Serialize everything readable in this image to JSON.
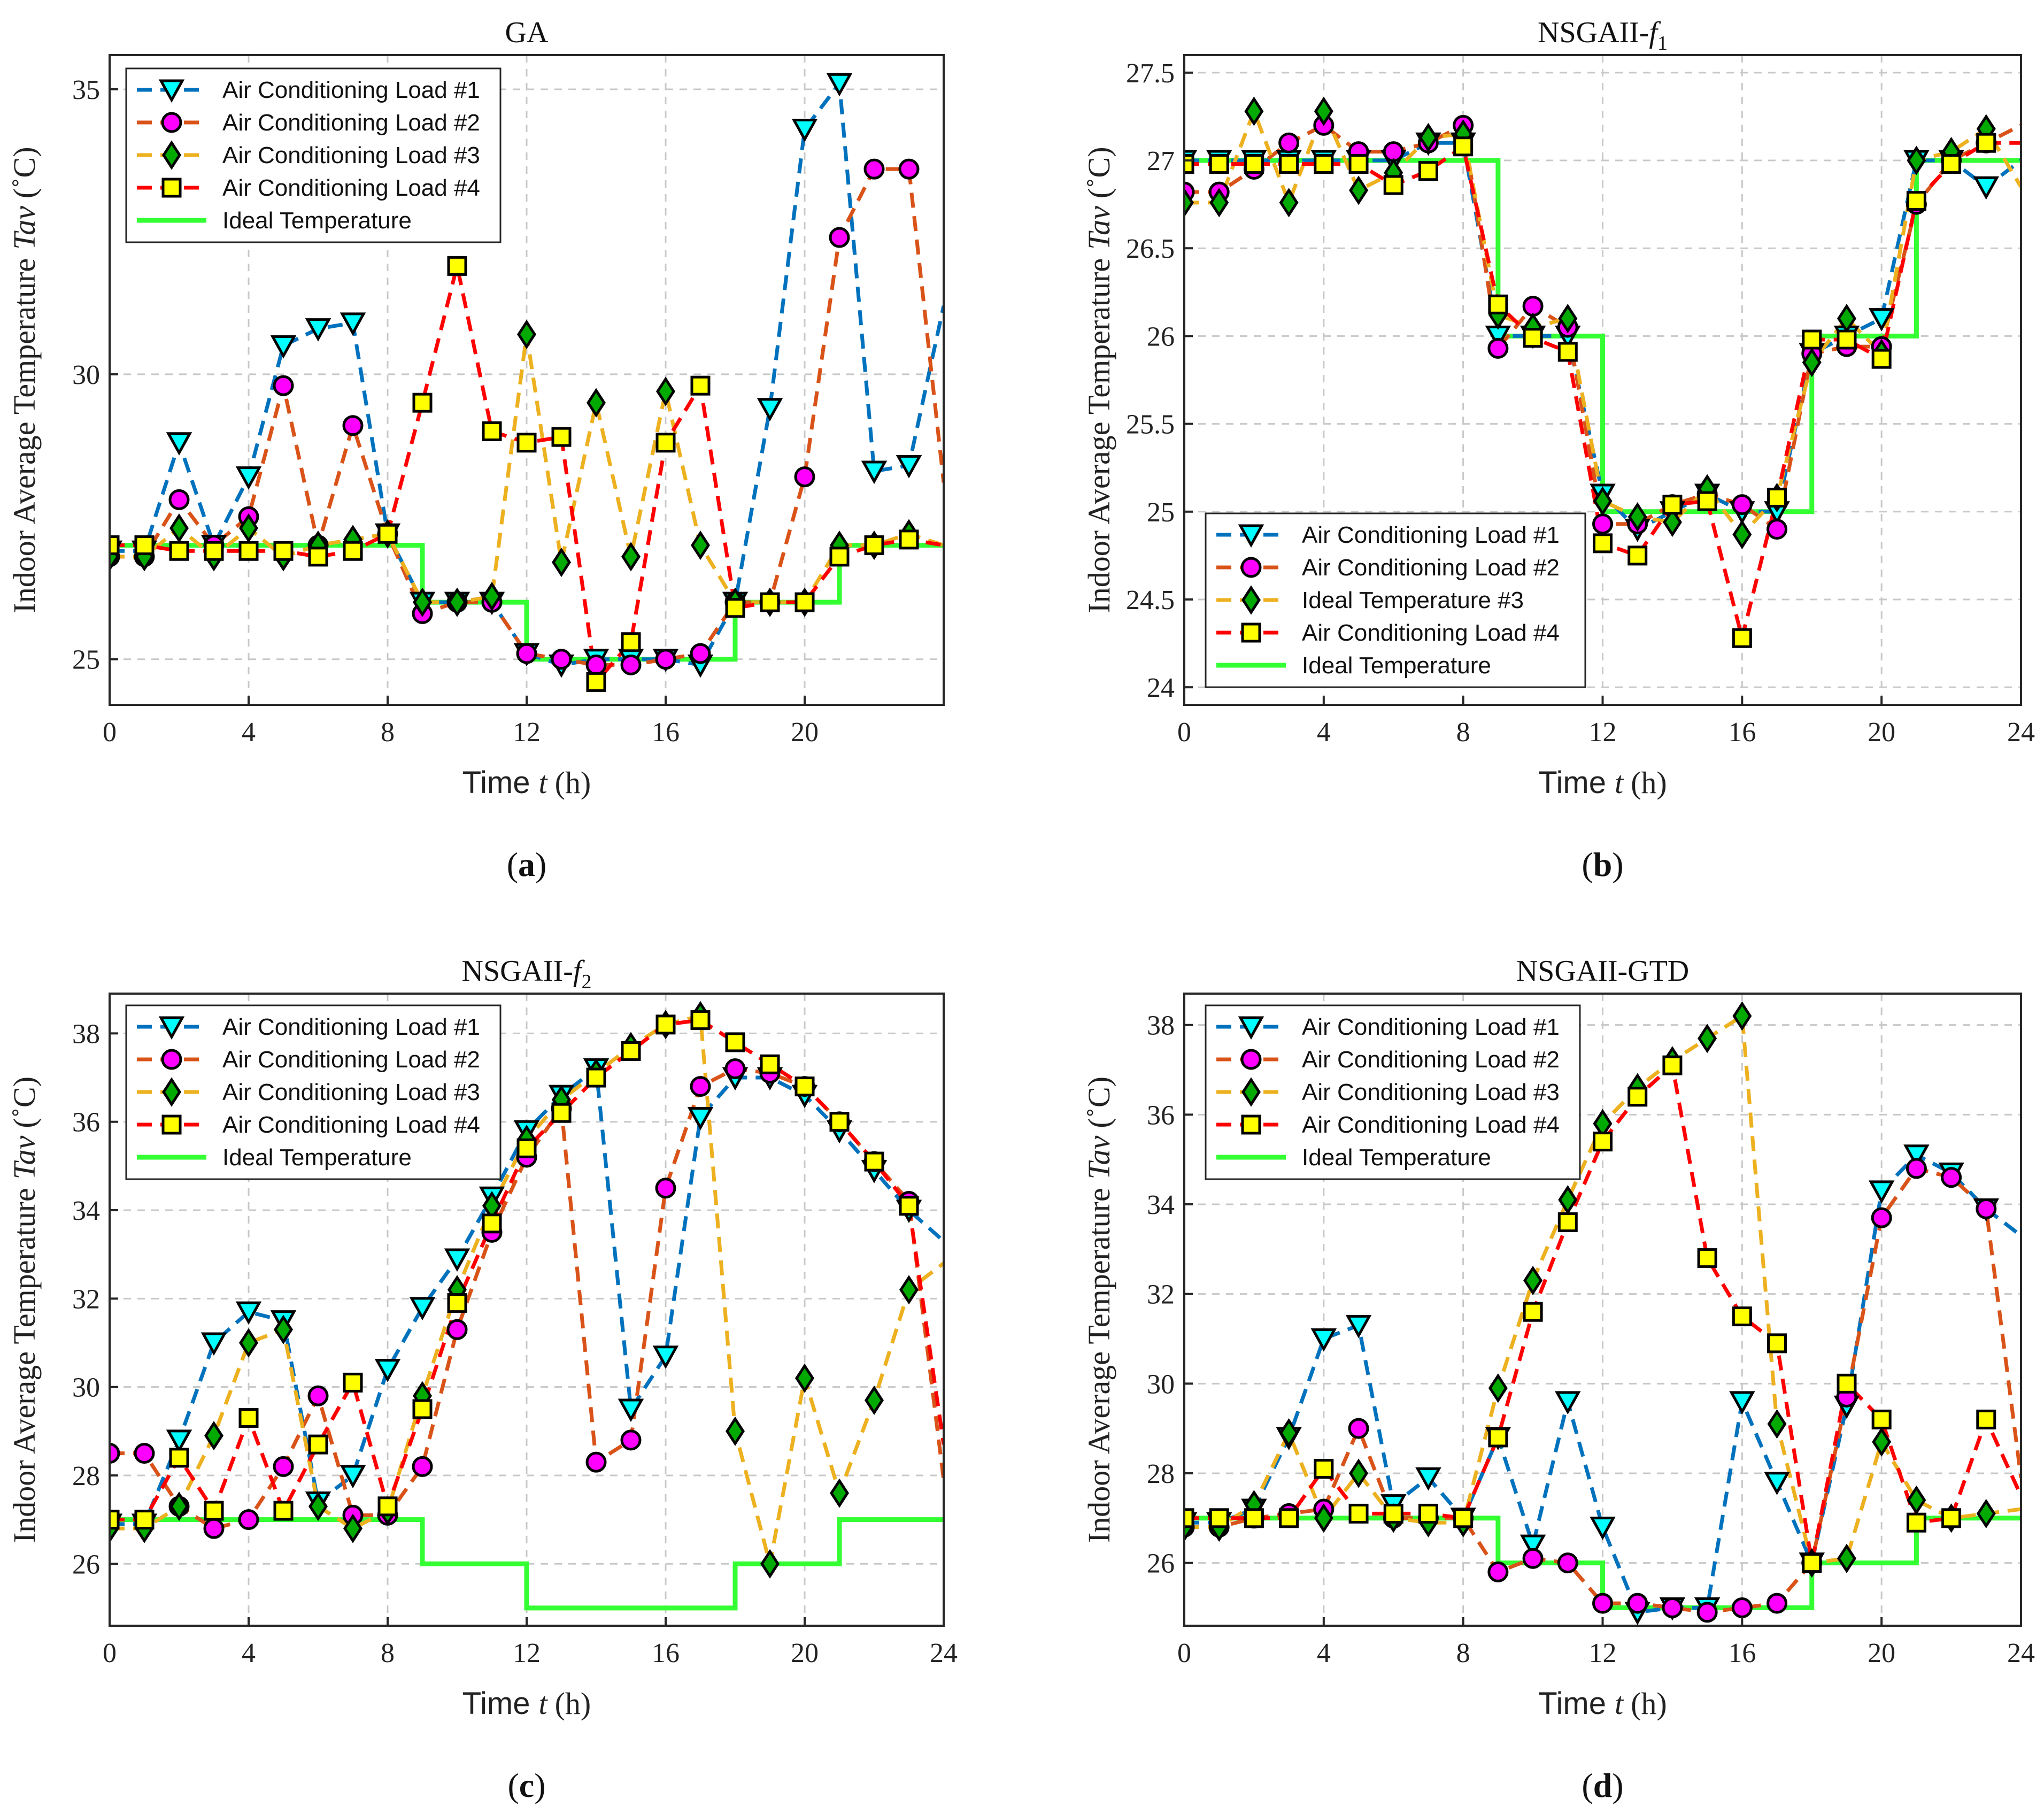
{
  "colors": {
    "load1": "#0072BD",
    "load2": "#D95319",
    "load3": "#EDB120",
    "load4": "#FF0000",
    "ideal": "#33FF33",
    "marker1": "#00FFFF",
    "marker2": "#FF00FF",
    "marker3": "#00AA00",
    "marker4": "#FFFF00",
    "grid": "#c8c8c8"
  },
  "chart_data": [
    {
      "type": "line",
      "caption_letter": "a",
      "title_main": "GA",
      "title_sub": "",
      "xlabel": "Time",
      "xlabel_var": "t",
      "xlabel_unit": "(h)",
      "ylabel": "Indoor Average Temperature",
      "ylabel_var": "Tav",
      "ylabel_unit": "(˚C)",
      "xlim": [
        0,
        24
      ],
      "ylim": [
        24.2,
        35.6
      ],
      "xticks": [
        0,
        4,
        8,
        12,
        16,
        20
      ],
      "yticks": [
        25,
        30,
        35
      ],
      "grid": true,
      "legend_position": "top-left",
      "x": [
        0,
        1,
        2,
        3,
        4,
        5,
        6,
        7,
        8,
        9,
        10,
        11,
        12,
        13,
        14,
        15,
        16,
        17,
        18,
        19,
        20,
        21,
        22,
        23,
        24
      ],
      "series": [
        {
          "name": "Air Conditioning Load #1",
          "marker": "triangle-down",
          "values": [
            26.9,
            26.9,
            28.8,
            27.0,
            28.2,
            30.5,
            30.8,
            30.9,
            27.2,
            26.0,
            26.0,
            26.0,
            25.1,
            24.9,
            25.0,
            25.0,
            25.0,
            24.9,
            26.0,
            29.4,
            34.3,
            35.1,
            28.3,
            28.4,
            31.2
          ]
        },
        {
          "name": "Air Conditioning Load #2",
          "marker": "circle",
          "values": [
            26.8,
            26.8,
            27.8,
            27.0,
            27.5,
            29.8,
            27.0,
            29.1,
            27.2,
            25.8,
            26.0,
            26.0,
            25.1,
            25.0,
            24.9,
            24.9,
            25.0,
            25.1,
            26.0,
            26.0,
            28.2,
            32.4,
            33.6,
            33.6,
            28.1
          ]
        },
        {
          "name": "Air Conditioning Load #3",
          "marker": "diamond",
          "values": [
            26.8,
            26.8,
            27.3,
            26.8,
            27.3,
            26.8,
            27.0,
            27.1,
            27.2,
            26.0,
            26.0,
            26.1,
            30.7,
            26.7,
            29.5,
            26.8,
            29.7,
            27.0,
            26.0,
            26.0,
            26.0,
            27.0,
            27.0,
            27.2,
            27.0
          ]
        },
        {
          "name": "Air Conditioning Load #4",
          "marker": "square",
          "values": [
            27.0,
            27.0,
            26.9,
            26.9,
            26.9,
            26.9,
            26.8,
            26.9,
            27.2,
            29.5,
            31.9,
            29.0,
            28.8,
            28.9,
            24.6,
            25.3,
            28.8,
            29.8,
            25.9,
            26.0,
            26.0,
            26.8,
            27.0,
            27.1,
            27.0
          ]
        },
        {
          "name": "Ideal Temperature",
          "marker": "none",
          "step": true,
          "values": [
            27,
            27,
            27,
            27,
            27,
            27,
            27,
            27,
            27,
            26,
            26,
            26,
            25,
            25,
            25,
            25,
            25,
            25,
            26,
            26,
            26,
            27,
            27,
            27,
            27
          ]
        }
      ]
    },
    {
      "type": "line",
      "caption_letter": "b",
      "title_main": "NSGAII-",
      "title_sub": "f1",
      "xlabel": "Time",
      "xlabel_var": "t",
      "xlabel_unit": "(h)",
      "ylabel": "Indoor Average Temperature",
      "ylabel_var": "Tav",
      "ylabel_unit": "(˚C)",
      "xlim": [
        0,
        24
      ],
      "ylim": [
        23.9,
        27.6
      ],
      "xticks": [
        0,
        4,
        8,
        12,
        16,
        20,
        24
      ],
      "yticks": [
        24,
        24.5,
        25,
        25.5,
        26,
        26.5,
        27,
        27.5
      ],
      "grid": true,
      "legend_position": "bottom-left",
      "x": [
        0,
        1,
        2,
        3,
        4,
        5,
        6,
        7,
        8,
        9,
        10,
        11,
        12,
        13,
        14,
        15,
        16,
        17,
        18,
        19,
        20,
        21,
        22,
        23,
        24
      ],
      "series": [
        {
          "name": "Air Conditioning Load #1",
          "marker": "triangle-down",
          "values": [
            27.0,
            27.0,
            27.0,
            27.0,
            27.0,
            27.0,
            27.0,
            27.1,
            27.1,
            26.0,
            26.0,
            26.0,
            25.1,
            24.9,
            25.0,
            25.1,
            25.0,
            25.0,
            25.9,
            26.0,
            26.1,
            27.0,
            27.0,
            26.85,
            27.0
          ]
        },
        {
          "name": "Air Conditioning Load #2",
          "marker": "circle",
          "values": [
            26.82,
            26.82,
            26.95,
            27.1,
            27.2,
            27.05,
            27.05,
            27.1,
            27.2,
            25.93,
            26.17,
            26.05,
            24.93,
            24.93,
            25.04,
            25.1,
            25.04,
            24.9,
            25.9,
            25.94,
            25.94,
            26.75,
            27.0,
            27.1,
            27.2
          ]
        },
        {
          "name": "Ideal Temperature #3",
          "marker": "diamond",
          "values": [
            26.76,
            26.76,
            27.28,
            26.76,
            27.28,
            26.83,
            26.93,
            27.13,
            27.15,
            26.12,
            26.05,
            26.1,
            25.06,
            24.97,
            24.94,
            25.13,
            24.87,
            25.08,
            25.85,
            26.1,
            25.9,
            27.0,
            27.05,
            27.18,
            26.85
          ]
        },
        {
          "name": "Air Conditioning Load #4",
          "marker": "square",
          "values": [
            26.98,
            26.98,
            26.98,
            26.98,
            26.98,
            26.98,
            26.86,
            26.94,
            27.08,
            26.18,
            25.99,
            25.91,
            24.82,
            24.75,
            25.04,
            25.06,
            24.28,
            25.08,
            25.98,
            25.98,
            25.87,
            26.77,
            26.98,
            27.1,
            27.1
          ]
        },
        {
          "name": "Ideal Temperature",
          "marker": "none",
          "step": true,
          "values": [
            27,
            27,
            27,
            27,
            27,
            27,
            27,
            27,
            27,
            26,
            26,
            26,
            25,
            25,
            25,
            25,
            25,
            25,
            26,
            26,
            26,
            27,
            27,
            27,
            27
          ]
        }
      ]
    },
    {
      "type": "line",
      "caption_letter": "c",
      "title_main": "NSGAII-",
      "title_sub": "f2",
      "xlabel": "Time",
      "xlabel_var": "t",
      "xlabel_unit": "(h)",
      "ylabel": "Indoor Average Temperature",
      "ylabel_var": "Tav",
      "ylabel_unit": "(˚C)",
      "xlim": [
        0,
        24
      ],
      "ylim": [
        24.6,
        38.9
      ],
      "xticks": [
        0,
        4,
        8,
        12,
        16,
        20,
        24
      ],
      "yticks": [
        26,
        28,
        30,
        32,
        34,
        36,
        38
      ],
      "grid": true,
      "legend_position": "top-left",
      "x": [
        0,
        1,
        2,
        3,
        4,
        5,
        6,
        7,
        8,
        9,
        10,
        11,
        12,
        13,
        14,
        15,
        16,
        17,
        18,
        19,
        20,
        21,
        22,
        23,
        24
      ],
      "series": [
        {
          "name": "Air Conditioning Load #1",
          "marker": "triangle-down",
          "values": [
            26.9,
            26.9,
            28.8,
            31.0,
            31.7,
            31.5,
            27.4,
            28.0,
            30.4,
            31.8,
            32.9,
            34.3,
            35.8,
            36.6,
            37.2,
            29.5,
            30.7,
            36.1,
            37.0,
            37.0,
            36.6,
            35.8,
            34.9,
            34.0,
            33.3
          ]
        },
        {
          "name": "Air Conditioning Load #2",
          "marker": "circle",
          "values": [
            28.5,
            28.5,
            27.3,
            26.8,
            27.0,
            28.2,
            29.8,
            27.1,
            27.1,
            28.2,
            31.3,
            33.5,
            35.2,
            36.3,
            28.3,
            28.8,
            34.5,
            36.8,
            37.2,
            37.1,
            36.8,
            36.0,
            35.1,
            34.2,
            27.9
          ]
        },
        {
          "name": "Air Conditioning Load #3",
          "marker": "diamond",
          "values": [
            26.8,
            26.8,
            27.3,
            28.9,
            31.0,
            31.3,
            27.3,
            26.8,
            27.2,
            29.8,
            32.2,
            34.1,
            35.6,
            36.5,
            37.1,
            37.7,
            38.2,
            38.4,
            29.0,
            26.0,
            30.2,
            27.6,
            29.7,
            32.2,
            32.8
          ]
        },
        {
          "name": "Air Conditioning Load #4",
          "marker": "square",
          "values": [
            27.0,
            27.0,
            28.4,
            27.2,
            29.3,
            27.2,
            28.7,
            30.1,
            27.3,
            29.5,
            31.9,
            33.7,
            35.4,
            36.2,
            37.0,
            37.6,
            38.2,
            38.3,
            37.8,
            37.3,
            36.8,
            36.0,
            35.1,
            34.1,
            28.7
          ]
        },
        {
          "name": "Ideal Temperature",
          "marker": "none",
          "step": true,
          "values": [
            27,
            27,
            27,
            27,
            27,
            27,
            27,
            27,
            27,
            26,
            26,
            26,
            25,
            25,
            25,
            25,
            25,
            25,
            26,
            26,
            26,
            27,
            27,
            27,
            27
          ]
        }
      ]
    },
    {
      "type": "line",
      "caption_letter": "d",
      "title_main": "NSGAII-GTD",
      "title_sub": "",
      "xlabel": "Time",
      "xlabel_var": "t",
      "xlabel_unit": "(h)",
      "ylabel": "Indoor Average Temperature",
      "ylabel_var": "Tav",
      "ylabel_unit": "(˚C)",
      "xlim": [
        0,
        24
      ],
      "ylim": [
        24.6,
        38.7
      ],
      "xticks": [
        0,
        4,
        8,
        12,
        16,
        20,
        24
      ],
      "yticks": [
        26,
        28,
        30,
        32,
        34,
        36,
        38
      ],
      "grid": true,
      "legend_position": "top-left",
      "x": [
        0,
        1,
        2,
        3,
        4,
        5,
        6,
        7,
        8,
        9,
        10,
        11,
        12,
        13,
        14,
        15,
        16,
        17,
        18,
        19,
        20,
        21,
        22,
        23,
        24
      ],
      "series": [
        {
          "name": "Air Conditioning Load #1",
          "marker": "triangle-down",
          "values": [
            26.9,
            26.9,
            27.2,
            28.8,
            31.0,
            31.3,
            27.3,
            27.9,
            27.0,
            28.8,
            26.4,
            29.6,
            26.8,
            24.9,
            25.0,
            25.0,
            29.6,
            27.8,
            26.0,
            29.5,
            34.3,
            35.1,
            34.7,
            33.9,
            33.3
          ]
        },
        {
          "name": "Air Conditioning Load #2",
          "marker": "circle",
          "values": [
            26.8,
            26.8,
            27.0,
            27.1,
            27.2,
            29.0,
            27.0,
            27.0,
            27.0,
            25.8,
            26.1,
            26.0,
            25.1,
            25.1,
            25.0,
            24.9,
            25.0,
            25.1,
            26.0,
            29.7,
            33.7,
            34.8,
            34.6,
            33.9,
            27.9
          ]
        },
        {
          "name": "Air Conditioning Load #3",
          "marker": "diamond",
          "values": [
            26.8,
            26.8,
            27.3,
            28.9,
            27.0,
            28.0,
            27.0,
            26.9,
            26.9,
            29.9,
            32.3,
            34.1,
            35.8,
            36.6,
            37.2,
            37.7,
            38.2,
            29.1,
            26.0,
            26.1,
            28.7,
            27.4,
            27.0,
            27.1,
            27.2
          ]
        },
        {
          "name": "Air Conditioning Load #4",
          "marker": "square",
          "values": [
            27.0,
            27.0,
            27.0,
            27.0,
            28.1,
            27.1,
            27.1,
            27.1,
            27.0,
            28.8,
            31.6,
            33.6,
            35.4,
            36.4,
            37.1,
            32.8,
            31.5,
            30.9,
            26.0,
            30.0,
            29.2,
            26.9,
            27.0,
            29.2,
            27.5
          ]
        },
        {
          "name": "Ideal Temperature",
          "marker": "none",
          "step": true,
          "values": [
            27,
            27,
            27,
            27,
            27,
            27,
            27,
            27,
            27,
            26,
            26,
            26,
            25,
            25,
            25,
            25,
            25,
            25,
            26,
            26,
            26,
            27,
            27,
            27,
            27
          ]
        }
      ]
    }
  ]
}
